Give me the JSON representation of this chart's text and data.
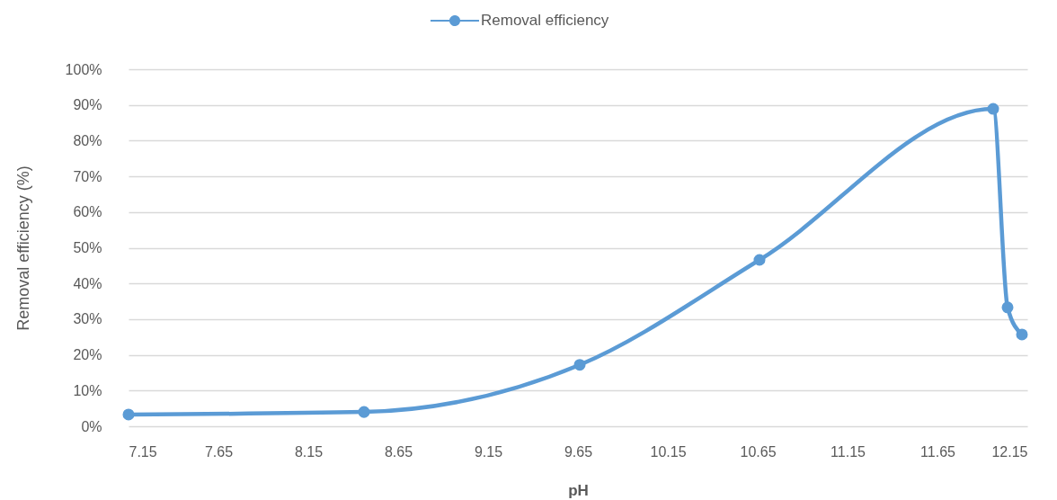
{
  "chart_data": {
    "type": "line",
    "xlabel": "pH",
    "ylabel": "Removal efficiency (%)",
    "xlim": [
      7.15,
      12.15
    ],
    "xticks": [
      7.15,
      7.65,
      8.15,
      8.65,
      9.15,
      9.65,
      10.15,
      10.65,
      11.15,
      11.65,
      12.15
    ],
    "ylim": [
      0,
      100
    ],
    "yticks": [
      {
        "value": 0,
        "label": "0%"
      },
      {
        "value": 10,
        "label": "10%"
      },
      {
        "value": 20,
        "label": "20%"
      },
      {
        "value": 30,
        "label": "30%"
      },
      {
        "value": 40,
        "label": "40%"
      },
      {
        "value": 50,
        "label": "50%"
      },
      {
        "value": 60,
        "label": "60%"
      },
      {
        "value": 70,
        "label": "70%"
      },
      {
        "value": 80,
        "label": "80%"
      },
      {
        "value": 90,
        "label": "90%"
      },
      {
        "value": 100,
        "label": "100%"
      }
    ],
    "grid": "y",
    "legend": "top",
    "marker": "circle",
    "line_style": "solid",
    "x": [
      7.15,
      8.46,
      9.66,
      10.66,
      11.96,
      12.04,
      12.12
    ],
    "series": [
      {
        "name": "Removal efficiency",
        "color": "#5b9bd5",
        "values": [
          3.3,
          4.0,
          17.2,
          46.6,
          88.9,
          33.3,
          25.7
        ]
      }
    ]
  }
}
